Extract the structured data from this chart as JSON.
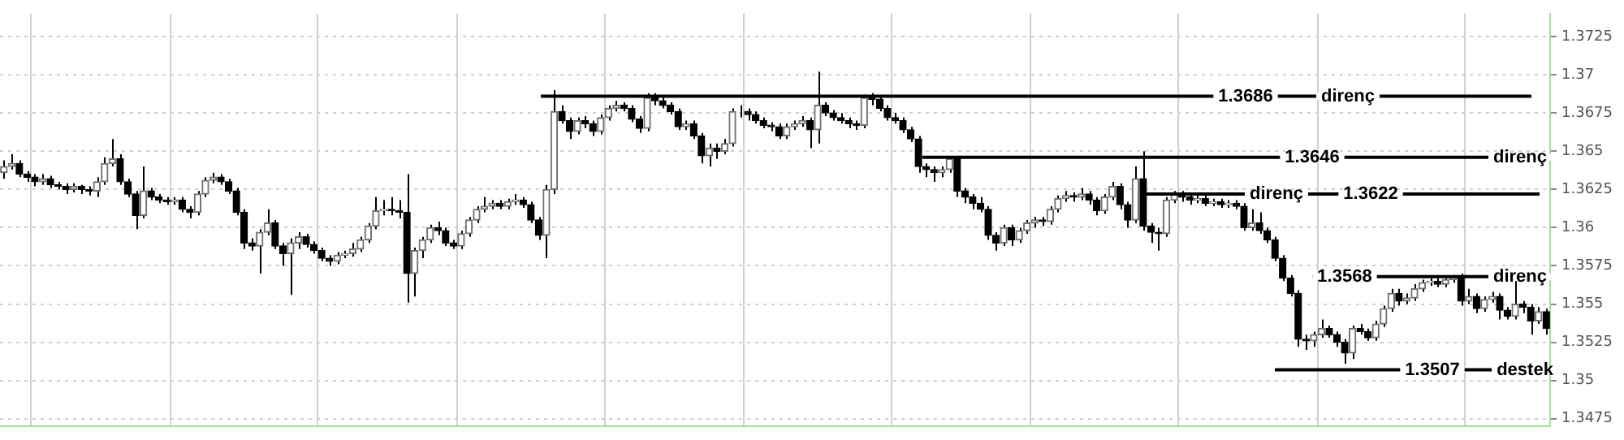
{
  "chart_data": {
    "type": "candlestick",
    "categories": [
      null,
      null,
      null,
      null,
      null,
      null,
      null,
      null,
      null,
      null,
      null,
      null,
      null,
      null,
      null,
      null,
      null,
      null,
      null,
      null,
      null,
      null,
      null,
      null,
      null,
      null,
      null,
      null,
      null,
      null,
      null,
      null,
      null,
      null,
      null,
      null,
      null,
      null,
      null,
      null,
      null,
      null,
      null,
      null,
      null,
      null,
      null,
      null,
      null,
      null,
      null,
      null,
      null,
      null,
      null,
      null,
      null,
      null,
      null,
      null,
      null,
      null,
      null,
      null,
      null,
      null,
      null,
      null,
      null,
      null,
      null,
      null,
      null,
      null,
      null,
      null,
      null,
      null,
      null,
      null,
      null,
      null,
      null,
      null,
      null,
      null,
      null,
      null,
      null,
      null,
      null,
      null,
      null,
      null,
      null,
      null,
      null,
      null,
      null,
      null,
      null,
      null,
      null,
      null,
      null,
      null,
      null,
      null,
      null,
      null,
      null,
      null,
      null,
      null,
      null,
      null,
      null,
      null,
      null,
      null,
      null,
      null,
      null,
      null,
      null,
      null,
      null,
      null,
      null,
      null,
      null,
      null,
      null,
      null,
      null,
      null,
      null,
      null,
      null,
      null,
      null,
      null,
      null,
      null,
      null,
      null,
      null,
      null,
      null,
      null,
      null,
      null,
      null,
      null,
      null,
      null,
      null,
      null,
      null,
      null,
      null,
      null,
      null,
      null,
      null,
      null,
      null,
      null,
      null,
      null,
      null,
      null,
      null,
      null,
      null,
      null,
      null,
      null,
      null,
      null,
      null,
      null,
      null,
      null,
      null,
      null,
      null,
      null,
      null,
      null,
      null,
      null,
      null,
      null,
      null,
      null,
      null,
      null,
      null,
      null
    ],
    "ohlc": [
      [
        1.3636,
        1.3644,
        1.3632,
        1.364
      ],
      [
        1.364,
        1.3648,
        1.3638,
        1.3642
      ],
      [
        1.3642,
        1.3644,
        1.3633,
        1.3635
      ],
      [
        1.3635,
        1.3637,
        1.363,
        1.3633
      ],
      [
        1.3633,
        1.3635,
        1.3627,
        1.363
      ],
      [
        1.363,
        1.3635,
        1.3628,
        1.3632
      ],
      [
        1.3632,
        1.3634,
        1.3626,
        1.3628
      ],
      [
        1.3628,
        1.363,
        1.3625,
        1.3627
      ],
      [
        1.3627,
        1.3629,
        1.3622,
        1.3625
      ],
      [
        1.3625,
        1.3629,
        1.3623,
        1.3627
      ],
      [
        1.3627,
        1.3628,
        1.3622,
        1.3625
      ],
      [
        1.3625,
        1.3627,
        1.3621,
        1.3624
      ],
      [
        1.3624,
        1.3633,
        1.362,
        1.363
      ],
      [
        1.363,
        1.3646,
        1.3628,
        1.3642
      ],
      [
        1.3642,
        1.3658,
        1.364,
        1.3645
      ],
      [
        1.3645,
        1.3648,
        1.3628,
        1.363
      ],
      [
        1.363,
        1.3632,
        1.362,
        1.3622
      ],
      [
        1.3622,
        1.3624,
        1.3599,
        1.3608
      ],
      [
        1.3608,
        1.364,
        1.3606,
        1.3624
      ],
      [
        1.3624,
        1.3626,
        1.3618,
        1.362
      ],
      [
        1.362,
        1.3622,
        1.3616,
        1.3618
      ],
      [
        1.3618,
        1.362,
        1.3615,
        1.3617
      ],
      [
        1.3617,
        1.362,
        1.3615,
        1.3618
      ],
      [
        1.3618,
        1.362,
        1.361,
        1.3612
      ],
      [
        1.3612,
        1.3614,
        1.3606,
        1.361
      ],
      [
        1.361,
        1.3624,
        1.3608,
        1.3622
      ],
      [
        1.3622,
        1.3633,
        1.362,
        1.3631
      ],
      [
        1.3631,
        1.3636,
        1.3629,
        1.3633
      ],
      [
        1.3633,
        1.3635,
        1.3628,
        1.363
      ],
      [
        1.363,
        1.3632,
        1.3622,
        1.3624
      ],
      [
        1.3624,
        1.3626,
        1.3608,
        1.361
      ],
      [
        1.361,
        1.3612,
        1.3586,
        1.359
      ],
      [
        1.359,
        1.3593,
        1.3585,
        1.3588
      ],
      [
        1.3588,
        1.3599,
        1.357,
        1.3597
      ],
      [
        1.3597,
        1.3612,
        1.3595,
        1.3603
      ],
      [
        1.3603,
        1.3605,
        1.3586,
        1.3588
      ],
      [
        1.3588,
        1.359,
        1.3575,
        1.3583
      ],
      [
        1.3583,
        1.3593,
        1.3556,
        1.359
      ],
      [
        1.359,
        1.3597,
        1.3586,
        1.3594
      ],
      [
        1.3594,
        1.3596,
        1.3587,
        1.3589
      ],
      [
        1.3589,
        1.3591,
        1.3583,
        1.3585
      ],
      [
        1.3585,
        1.3587,
        1.3578,
        1.358
      ],
      [
        1.358,
        1.3582,
        1.3575,
        1.3578
      ],
      [
        1.3578,
        1.3584,
        1.3576,
        1.3582
      ],
      [
        1.3582,
        1.3585,
        1.358,
        1.3583
      ],
      [
        1.3583,
        1.359,
        1.3581,
        1.3586
      ],
      [
        1.3586,
        1.3594,
        1.3584,
        1.3592
      ],
      [
        1.3592,
        1.3603,
        1.359,
        1.3601
      ],
      [
        1.3601,
        1.362,
        1.3599,
        1.3611
      ],
      [
        1.3611,
        1.3618,
        1.3608,
        1.3612
      ],
      [
        1.3612,
        1.362,
        1.3608,
        1.3611
      ],
      [
        1.3611,
        1.3618,
        1.3606,
        1.361
      ],
      [
        1.361,
        1.3635,
        1.3551,
        1.357
      ],
      [
        1.357,
        1.3587,
        1.3555,
        1.3585
      ],
      [
        1.3585,
        1.3594,
        1.358,
        1.3592
      ],
      [
        1.3592,
        1.3602,
        1.359,
        1.36
      ],
      [
        1.36,
        1.3604,
        1.3595,
        1.3598
      ],
      [
        1.3598,
        1.36,
        1.3588,
        1.359
      ],
      [
        1.359,
        1.3592,
        1.3586,
        1.3588
      ],
      [
        1.3588,
        1.3598,
        1.3586,
        1.3596
      ],
      [
        1.3596,
        1.3607,
        1.3594,
        1.3605
      ],
      [
        1.3605,
        1.3614,
        1.3603,
        1.3612
      ],
      [
        1.3612,
        1.362,
        1.361,
        1.3614
      ],
      [
        1.3614,
        1.3618,
        1.3612,
        1.3616
      ],
      [
        1.3616,
        1.3618,
        1.3612,
        1.3614
      ],
      [
        1.3614,
        1.3619,
        1.3612,
        1.3617
      ],
      [
        1.3617,
        1.3622,
        1.3615,
        1.3618
      ],
      [
        1.3618,
        1.362,
        1.3613,
        1.3615
      ],
      [
        1.3615,
        1.3617,
        1.3603,
        1.3605
      ],
      [
        1.3605,
        1.3607,
        1.3592,
        1.3595
      ],
      [
        1.3595,
        1.3628,
        1.358,
        1.3625
      ],
      [
        1.3625,
        1.369,
        1.3622,
        1.3676
      ],
      [
        1.3676,
        1.368,
        1.3668,
        1.367
      ],
      [
        1.367,
        1.3672,
        1.3658,
        1.3663
      ],
      [
        1.3663,
        1.3672,
        1.3661,
        1.367
      ],
      [
        1.367,
        1.3673,
        1.3665,
        1.3668
      ],
      [
        1.3668,
        1.367,
        1.366,
        1.3663
      ],
      [
        1.3663,
        1.3674,
        1.3661,
        1.3672
      ],
      [
        1.3672,
        1.368,
        1.367,
        1.3678
      ],
      [
        1.3678,
        1.3683,
        1.3676,
        1.368
      ],
      [
        1.368,
        1.3682,
        1.3676,
        1.3678
      ],
      [
        1.3678,
        1.368,
        1.3669,
        1.3671
      ],
      [
        1.3671,
        1.3673,
        1.3662,
        1.3665
      ],
      [
        1.3665,
        1.3688,
        1.3663,
        1.3685
      ],
      [
        1.3685,
        1.3688,
        1.368,
        1.3683
      ],
      [
        1.3683,
        1.3685,
        1.3678,
        1.368
      ],
      [
        1.368,
        1.3682,
        1.3674,
        1.3676
      ],
      [
        1.3676,
        1.3678,
        1.3664,
        1.3666
      ],
      [
        1.3666,
        1.367,
        1.3664,
        1.3668
      ],
      [
        1.3668,
        1.367,
        1.3658,
        1.366
      ],
      [
        1.366,
        1.3662,
        1.3642,
        1.3647
      ],
      [
        1.3647,
        1.3655,
        1.364,
        1.3652
      ],
      [
        1.3652,
        1.3655,
        1.3645,
        1.365
      ],
      [
        1.365,
        1.3658,
        1.3648,
        1.3655
      ],
      [
        1.3655,
        1.3678,
        1.3653,
        1.3676
      ],
      [
        1.3676,
        1.368,
        1.3672,
        1.3676
      ],
      [
        1.3676,
        1.3678,
        1.367,
        1.3674
      ],
      [
        1.3674,
        1.3676,
        1.3668,
        1.367
      ],
      [
        1.367,
        1.3672,
        1.3665,
        1.3667
      ],
      [
        1.3667,
        1.3669,
        1.3663,
        1.3666
      ],
      [
        1.3666,
        1.3668,
        1.3658,
        1.366
      ],
      [
        1.366,
        1.3668,
        1.3658,
        1.3666
      ],
      [
        1.3666,
        1.367,
        1.3664,
        1.3668
      ],
      [
        1.3668,
        1.3673,
        1.3666,
        1.367
      ],
      [
        1.367,
        1.3672,
        1.3652,
        1.3664
      ],
      [
        1.3664,
        1.3702,
        1.3655,
        1.368
      ],
      [
        1.368,
        1.3682,
        1.3673,
        1.3675
      ],
      [
        1.3675,
        1.3677,
        1.367,
        1.3672
      ],
      [
        1.3672,
        1.3675,
        1.3668,
        1.367
      ],
      [
        1.367,
        1.3672,
        1.3665,
        1.3668
      ],
      [
        1.3668,
        1.367,
        1.3664,
        1.3667
      ],
      [
        1.3667,
        1.3687,
        1.3665,
        1.3685
      ],
      [
        1.3685,
        1.3688,
        1.368,
        1.3684
      ],
      [
        1.3684,
        1.3686,
        1.3676,
        1.3678
      ],
      [
        1.3678,
        1.368,
        1.367,
        1.3672
      ],
      [
        1.3672,
        1.3675,
        1.3668,
        1.367
      ],
      [
        1.367,
        1.3672,
        1.3662,
        1.3664
      ],
      [
        1.3664,
        1.3666,
        1.3656,
        1.3658
      ],
      [
        1.3658,
        1.366,
        1.3636,
        1.364
      ],
      [
        1.364,
        1.3642,
        1.3633,
        1.3638
      ],
      [
        1.3638,
        1.364,
        1.363,
        1.3636
      ],
      [
        1.3636,
        1.364,
        1.3633,
        1.3638
      ],
      [
        1.3638,
        1.3647,
        1.3636,
        1.3645
      ],
      [
        1.3645,
        1.3647,
        1.362,
        1.3624
      ],
      [
        1.3624,
        1.3626,
        1.3616,
        1.362
      ],
      [
        1.362,
        1.3622,
        1.3612,
        1.3616
      ],
      [
        1.3616,
        1.362,
        1.361,
        1.3612
      ],
      [
        1.3612,
        1.3614,
        1.3592,
        1.3595
      ],
      [
        1.3595,
        1.3597,
        1.3585,
        1.359
      ],
      [
        1.359,
        1.3602,
        1.3588,
        1.36
      ],
      [
        1.36,
        1.3602,
        1.3588,
        1.3592
      ],
      [
        1.3592,
        1.36,
        1.359,
        1.3598
      ],
      [
        1.3598,
        1.3605,
        1.3596,
        1.3603
      ],
      [
        1.3603,
        1.3607,
        1.36,
        1.3605
      ],
      [
        1.3605,
        1.3607,
        1.3601,
        1.3604
      ],
      [
        1.3604,
        1.3614,
        1.3602,
        1.3612
      ],
      [
        1.3612,
        1.3621,
        1.361,
        1.3619
      ],
      [
        1.3619,
        1.3624,
        1.3617,
        1.3621
      ],
      [
        1.3621,
        1.3623,
        1.3617,
        1.362
      ],
      [
        1.362,
        1.3626,
        1.3618,
        1.3622
      ],
      [
        1.3622,
        1.3624,
        1.3615,
        1.3618
      ],
      [
        1.3618,
        1.362,
        1.3608,
        1.3611
      ],
      [
        1.3611,
        1.3622,
        1.3609,
        1.362
      ],
      [
        1.362,
        1.363,
        1.3618,
        1.3627
      ],
      [
        1.3627,
        1.3629,
        1.3612,
        1.3615
      ],
      [
        1.3615,
        1.3617,
        1.36,
        1.3605
      ],
      [
        1.3605,
        1.364,
        1.3603,
        1.3632
      ],
      [
        1.3632,
        1.365,
        1.3598,
        1.3601
      ],
      [
        1.3601,
        1.3603,
        1.359,
        1.3597
      ],
      [
        1.3597,
        1.36,
        1.3585,
        1.3596
      ],
      [
        1.3596,
        1.362,
        1.3594,
        1.3618
      ],
      [
        1.3618,
        1.3624,
        1.3616,
        1.3622
      ],
      [
        1.3622,
        1.3624,
        1.3617,
        1.362
      ],
      [
        1.362,
        1.3622,
        1.3615,
        1.3618
      ],
      [
        1.3618,
        1.3621,
        1.3616,
        1.3619
      ],
      [
        1.3619,
        1.3621,
        1.3614,
        1.3616
      ],
      [
        1.3616,
        1.3619,
        1.3614,
        1.3617
      ],
      [
        1.3617,
        1.3619,
        1.3613,
        1.3615
      ],
      [
        1.3615,
        1.3618,
        1.3613,
        1.3616
      ],
      [
        1.3616,
        1.3618,
        1.3612,
        1.3614
      ],
      [
        1.3614,
        1.3616,
        1.3598,
        1.36
      ],
      [
        1.36,
        1.3612,
        1.3598,
        1.3603
      ],
      [
        1.3603,
        1.361,
        1.3596,
        1.3598
      ],
      [
        1.3598,
        1.36,
        1.359,
        1.3592
      ],
      [
        1.3592,
        1.3594,
        1.3578,
        1.358
      ],
      [
        1.358,
        1.3582,
        1.3565,
        1.3567
      ],
      [
        1.3567,
        1.3569,
        1.3555,
        1.3557
      ],
      [
        1.3557,
        1.3559,
        1.3522,
        1.3527
      ],
      [
        1.3527,
        1.353,
        1.352,
        1.3526
      ],
      [
        1.3526,
        1.3532,
        1.3522,
        1.353
      ],
      [
        1.353,
        1.354,
        1.3528,
        1.3534
      ],
      [
        1.3534,
        1.3536,
        1.3528,
        1.353
      ],
      [
        1.353,
        1.3532,
        1.3522,
        1.3525
      ],
      [
        1.3525,
        1.3527,
        1.3511,
        1.3518
      ],
      [
        1.3518,
        1.3536,
        1.3514,
        1.3534
      ],
      [
        1.3534,
        1.3537,
        1.353,
        1.3532
      ],
      [
        1.3532,
        1.3534,
        1.3526,
        1.3528
      ],
      [
        1.3528,
        1.3539,
        1.3526,
        1.3537
      ],
      [
        1.3537,
        1.3549,
        1.3535,
        1.3547
      ],
      [
        1.3547,
        1.356,
        1.3545,
        1.3557
      ],
      [
        1.3557,
        1.356,
        1.3549,
        1.3552
      ],
      [
        1.3552,
        1.3557,
        1.355,
        1.3554
      ],
      [
        1.3554,
        1.3563,
        1.3552,
        1.356
      ],
      [
        1.356,
        1.3566,
        1.3558,
        1.3564
      ],
      [
        1.3564,
        1.3567,
        1.3562,
        1.3565
      ],
      [
        1.3565,
        1.3567,
        1.3561,
        1.3563
      ],
      [
        1.3563,
        1.3568,
        1.3561,
        1.3566
      ],
      [
        1.3566,
        1.3569,
        1.3564,
        1.3568
      ],
      [
        1.3568,
        1.357,
        1.3549,
        1.3552
      ],
      [
        1.3552,
        1.356,
        1.355,
        1.3555
      ],
      [
        1.3555,
        1.3557,
        1.3544,
        1.3547
      ],
      [
        1.3547,
        1.3555,
        1.3545,
        1.3553
      ],
      [
        1.3553,
        1.3558,
        1.3551,
        1.3555
      ],
      [
        1.3555,
        1.3557,
        1.354,
        1.3546
      ],
      [
        1.3546,
        1.3548,
        1.354,
        1.3542
      ],
      [
        1.3542,
        1.3565,
        1.354,
        1.355
      ],
      [
        1.355,
        1.3552,
        1.3544,
        1.3548
      ],
      [
        1.3548,
        1.355,
        1.353,
        1.3539
      ],
      [
        1.3539,
        1.3548,
        1.3537,
        1.3545
      ],
      [
        1.3545,
        1.3547,
        1.353,
        1.3534
      ]
    ],
    "ylim": [
      1.347,
      1.374
    ],
    "yticks": [
      1.3475,
      1.35,
      1.3525,
      1.355,
      1.3575,
      1.36,
      1.3625,
      1.365,
      1.3675,
      1.37,
      1.3725
    ],
    "grid": true,
    "tick_labels": "y",
    "annotations": [
      "1.3686",
      "1.3646",
      "1.3622",
      "1.3568",
      "1.3507"
    ],
    "ref_lines": [
      {
        "axis": "y",
        "value": 1.3686,
        "label": "direnç"
      },
      {
        "axis": "y",
        "value": 1.3646,
        "label": "direnç"
      },
      {
        "axis": "y",
        "value": 1.3622,
        "label": "direnç"
      },
      {
        "axis": "y",
        "value": 1.3568,
        "label": "direnç"
      },
      {
        "axis": "y",
        "value": 1.3507,
        "label": "destek"
      }
    ]
  }
}
